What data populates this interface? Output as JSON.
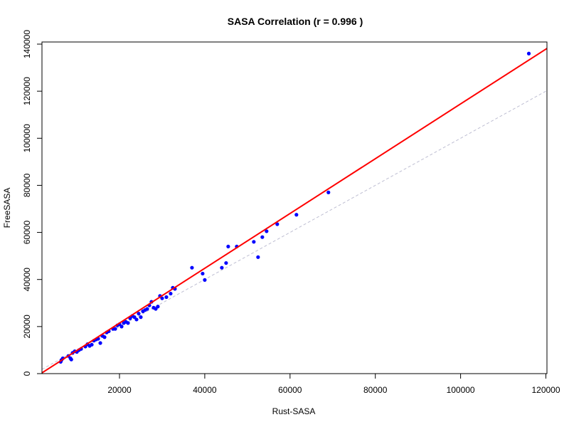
{
  "chart_data": {
    "type": "scatter",
    "title": "SASA Correlation (r = 0.996 )",
    "xlabel": "Rust-SASA",
    "ylabel": "FreeSASA",
    "xlim": [
      0,
      120000
    ],
    "ylim": [
      0,
      140000
    ],
    "x_ticks": [
      20000,
      40000,
      60000,
      80000,
      100000,
      120000
    ],
    "y_ticks": [
      0,
      20000,
      40000,
      60000,
      80000,
      100000,
      120000,
      140000
    ],
    "x_tick_labels": [
      "20000",
      "40000",
      "60000",
      "80000",
      "100000",
      "120000"
    ],
    "y_tick_labels": [
      "0",
      "20000",
      "40000",
      "60000",
      "80000",
      "100000",
      "120000",
      "140000"
    ],
    "grid": false,
    "point_color": "#0000ff",
    "fit_line_color": "#ff0000",
    "identity_line_color": "#bebed2",
    "fit_line": {
      "slope": 1.164,
      "intercept": -1800
    },
    "identity_line": {
      "slope": 1,
      "intercept": 0
    },
    "series": [
      {
        "points": [
          [
            6200,
            5000
          ],
          [
            6400,
            5800
          ],
          [
            6700,
            6500
          ],
          [
            8000,
            7500
          ],
          [
            8500,
            6500
          ],
          [
            8700,
            6000
          ],
          [
            9000,
            8800
          ],
          [
            9500,
            9500
          ],
          [
            10000,
            9200
          ],
          [
            10500,
            10000
          ],
          [
            11000,
            10500
          ],
          [
            12000,
            11500
          ],
          [
            12500,
            12500
          ],
          [
            13000,
            11800
          ],
          [
            13500,
            12300
          ],
          [
            14000,
            14000
          ],
          [
            14500,
            14500
          ],
          [
            15000,
            14800
          ],
          [
            15500,
            13000
          ],
          [
            16000,
            16000
          ],
          [
            16500,
            15500
          ],
          [
            17000,
            17500
          ],
          [
            17500,
            18000
          ],
          [
            18500,
            19000
          ],
          [
            19000,
            19000
          ],
          [
            19500,
            20500
          ],
          [
            20000,
            21000
          ],
          [
            20500,
            20000
          ],
          [
            21000,
            21500
          ],
          [
            21500,
            22000
          ],
          [
            22000,
            21500
          ],
          [
            22500,
            23500
          ],
          [
            23000,
            24500
          ],
          [
            23500,
            24000
          ],
          [
            24000,
            23000
          ],
          [
            24500,
            25500
          ],
          [
            25000,
            24000
          ],
          [
            25500,
            26500
          ],
          [
            26000,
            27000
          ],
          [
            26500,
            27500
          ],
          [
            27000,
            29000
          ],
          [
            27500,
            30500
          ],
          [
            28000,
            28000
          ],
          [
            28500,
            27500
          ],
          [
            29000,
            28500
          ],
          [
            29500,
            33000
          ],
          [
            30000,
            32000
          ],
          [
            31000,
            32500
          ],
          [
            32000,
            34000
          ],
          [
            32500,
            36500
          ],
          [
            33000,
            36000
          ],
          [
            37000,
            45000
          ],
          [
            39500,
            42500
          ],
          [
            40000,
            39800
          ],
          [
            44000,
            45000
          ],
          [
            45000,
            47000
          ],
          [
            45500,
            54000
          ],
          [
            47500,
            54000
          ],
          [
            51500,
            56000
          ],
          [
            52500,
            49500
          ],
          [
            53500,
            58000
          ],
          [
            54500,
            60500
          ],
          [
            57000,
            63500
          ],
          [
            61500,
            67500
          ],
          [
            69000,
            77000
          ],
          [
            116000,
            136000
          ]
        ]
      }
    ]
  }
}
